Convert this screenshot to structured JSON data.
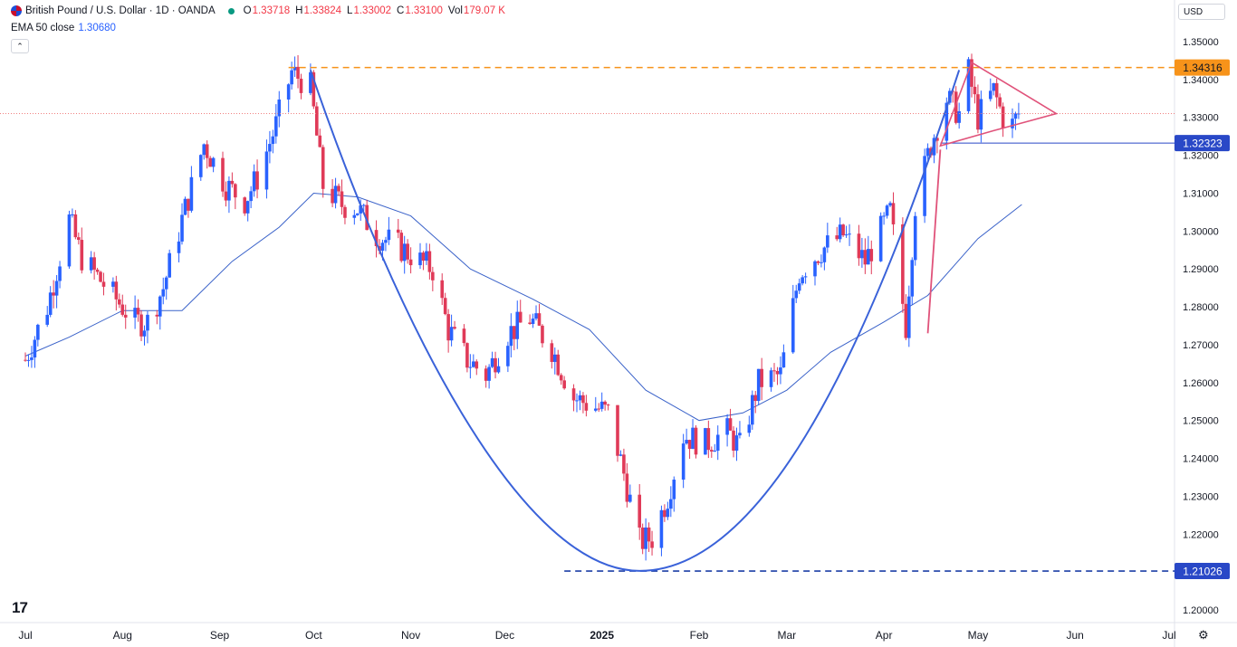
{
  "header": {
    "symbol": "British Pound / U.S. Dollar · 1D · OANDA",
    "o_label": "O",
    "o_value": "1.33718",
    "h_label": "H",
    "h_value": "1.33824",
    "l_label": "L",
    "l_value": "1.33002",
    "c_label": "C",
    "c_value": "1.33100",
    "vol_label": "Vol",
    "vol_value": "179.07 K"
  },
  "indicator": {
    "label": "EMA 50 close",
    "value": "1.30680"
  },
  "currency_button": "USD",
  "collapse_icon": "chevron-up-icon",
  "logo": "TV",
  "settings_icon": "gear-icon",
  "colors": {
    "up": "#2962ff",
    "down": "#e03a58",
    "ema": "#3a62c9",
    "cup": "#3a62d9",
    "triangle": "#e0527a",
    "resistance": "#f7931a",
    "support_dash": "#1d3fa6",
    "price_line": "#f08080",
    "breakout": "#2948c7"
  },
  "chart_data": {
    "type": "candlestick",
    "title": "British Pound / U.S. Dollar · 1D · OANDA",
    "y_axis": {
      "ticks": [
        "1.35000",
        "1.34000",
        "1.33000",
        "1.32000",
        "1.31000",
        "1.30000",
        "1.29000",
        "1.28000",
        "1.27000",
        "1.26000",
        "1.25000",
        "1.24000",
        "1.23000",
        "1.22000",
        "1.21000",
        "1.20000"
      ],
      "range": [
        1.196,
        1.3545
      ]
    },
    "x_axis": {
      "ticks": [
        "Jul",
        "Aug",
        "Sep",
        "Oct",
        "Nov",
        "Dec",
        "2025",
        "Feb",
        "Mar",
        "Apr",
        "May",
        "Jun",
        "Jul"
      ],
      "dates": [
        "2024-07-01",
        "2024-08-01",
        "2024-09-01",
        "2024-10-01",
        "2024-11-01",
        "2024-12-01",
        "2025-01-01",
        "2025-02-01",
        "2025-03-01",
        "2025-04-01",
        "2025-05-01",
        "2025-06-01",
        "2025-07-01"
      ],
      "bold_tick": "2025"
    },
    "price_tags": [
      {
        "value": 1.34316,
        "label": "1.34316",
        "style": "resistance"
      },
      {
        "value": 1.32323,
        "label": "1.32323",
        "style": "breakout"
      },
      {
        "value": 1.21026,
        "label": "1.21026",
        "style": "support"
      }
    ],
    "current_price": 1.331,
    "closes": [
      {
        "d": "2024-07-01",
        "c": 1.266
      },
      {
        "d": "2024-07-08",
        "c": 1.28
      },
      {
        "d": "2024-07-15",
        "c": 1.303
      },
      {
        "d": "2024-07-19",
        "c": 1.293
      },
      {
        "d": "2024-07-26",
        "c": 1.286
      },
      {
        "d": "2024-08-05",
        "c": 1.276
      },
      {
        "d": "2024-08-09",
        "c": 1.276
      },
      {
        "d": "2024-08-14",
        "c": 1.285
      },
      {
        "d": "2024-08-20",
        "c": 1.303
      },
      {
        "d": "2024-08-27",
        "c": 1.323
      },
      {
        "d": "2024-09-03",
        "c": 1.312
      },
      {
        "d": "2024-09-09",
        "c": 1.308
      },
      {
        "d": "2024-09-13",
        "c": 1.314
      },
      {
        "d": "2024-09-19",
        "c": 1.328
      },
      {
        "d": "2024-09-24",
        "c": 1.342
      },
      {
        "d": "2024-09-30",
        "c": 1.338
      },
      {
        "d": "2024-10-04",
        "c": 1.312
      },
      {
        "d": "2024-10-10",
        "c": 1.307
      },
      {
        "d": "2024-10-15",
        "c": 1.306
      },
      {
        "d": "2024-10-21",
        "c": 1.299
      },
      {
        "d": "2024-10-28",
        "c": 1.296
      },
      {
        "d": "2024-11-04",
        "c": 1.292
      },
      {
        "d": "2024-11-08",
        "c": 1.29
      },
      {
        "d": "2024-11-13",
        "c": 1.274
      },
      {
        "d": "2024-11-19",
        "c": 1.266
      },
      {
        "d": "2024-11-25",
        "c": 1.262
      },
      {
        "d": "2024-12-02",
        "c": 1.273
      },
      {
        "d": "2024-12-09",
        "c": 1.277
      },
      {
        "d": "2024-12-16",
        "c": 1.269
      },
      {
        "d": "2024-12-23",
        "c": 1.256
      },
      {
        "d": "2025-01-03",
        "c": 1.252
      },
      {
        "d": "2025-01-08",
        "c": 1.236
      },
      {
        "d": "2025-01-13",
        "c": 1.218
      },
      {
        "d": "2025-01-17",
        "c": 1.219
      },
      {
        "d": "2025-01-22",
        "c": 1.23
      },
      {
        "d": "2025-01-27",
        "c": 1.246
      },
      {
        "d": "2025-02-03",
        "c": 1.244
      },
      {
        "d": "2025-02-10",
        "c": 1.247
      },
      {
        "d": "2025-02-14",
        "c": 1.243
      },
      {
        "d": "2025-02-20",
        "c": 1.26
      },
      {
        "d": "2025-02-27",
        "c": 1.262
      },
      {
        "d": "2025-03-05",
        "c": 1.289
      },
      {
        "d": "2025-03-12",
        "c": 1.295
      },
      {
        "d": "2025-03-19",
        "c": 1.299
      },
      {
        "d": "2025-03-26",
        "c": 1.292
      },
      {
        "d": "2025-04-03",
        "c": 1.305
      },
      {
        "d": "2025-04-08",
        "c": 1.275
      },
      {
        "d": "2025-04-11",
        "c": 1.307
      },
      {
        "d": "2025-04-16",
        "c": 1.323
      },
      {
        "d": "2025-04-21",
        "c": 1.335
      },
      {
        "d": "2025-04-25",
        "c": 1.331
      },
      {
        "d": "2025-04-28",
        "c": 1.342
      },
      {
        "d": "2025-05-01",
        "c": 1.33
      },
      {
        "d": "2025-05-06",
        "c": 1.337
      },
      {
        "d": "2025-05-09",
        "c": 1.33
      },
      {
        "d": "2025-05-12",
        "c": 1.328
      },
      {
        "d": "2025-05-14",
        "c": 1.331
      }
    ],
    "ema50": [
      {
        "d": "2024-07-01",
        "v": 1.267
      },
      {
        "d": "2024-07-15",
        "v": 1.272
      },
      {
        "d": "2024-08-01",
        "v": 1.279
      },
      {
        "d": "2024-08-20",
        "v": 1.279
      },
      {
        "d": "2024-09-05",
        "v": 1.292
      },
      {
        "d": "2024-09-20",
        "v": 1.301
      },
      {
        "d": "2024-10-01",
        "v": 1.31
      },
      {
        "d": "2024-10-15",
        "v": 1.309
      },
      {
        "d": "2024-11-01",
        "v": 1.304
      },
      {
        "d": "2024-11-20",
        "v": 1.29
      },
      {
        "d": "2024-12-10",
        "v": 1.282
      },
      {
        "d": "2024-12-28",
        "v": 1.274
      },
      {
        "d": "2025-01-15",
        "v": 1.258
      },
      {
        "d": "2025-02-01",
        "v": 1.25
      },
      {
        "d": "2025-02-15",
        "v": 1.252
      },
      {
        "d": "2025-03-01",
        "v": 1.258
      },
      {
        "d": "2025-03-15",
        "v": 1.268
      },
      {
        "d": "2025-04-01",
        "v": 1.276
      },
      {
        "d": "2025-04-15",
        "v": 1.283
      },
      {
        "d": "2025-05-01",
        "v": 1.298
      },
      {
        "d": "2025-05-15",
        "v": 1.307
      }
    ],
    "annotations": {
      "cup": {
        "start": {
          "d": "2024-09-30",
          "v": 1.3425
        },
        "bottom": {
          "d": "2025-01-13",
          "v": 1.2103
        },
        "end": {
          "d": "2025-04-25",
          "v": 1.3425
        }
      },
      "flagpole": [
        {
          "d": "2025-04-15",
          "v": 1.273
        },
        {
          "d": "2025-04-19",
          "v": 1.3215
        }
      ],
      "triangle": [
        {
          "d": "2025-04-19",
          "v": 1.3225
        },
        {
          "d": "2025-04-29",
          "v": 1.3445
        },
        {
          "d": "2025-05-26",
          "v": 1.331
        },
        {
          "d": "2025-05-06",
          "v": 1.3265
        }
      ],
      "resistance_line_start": "2024-09-23",
      "support_line_start": "2024-12-20",
      "breakout_line_start": "2025-04-19"
    }
  }
}
